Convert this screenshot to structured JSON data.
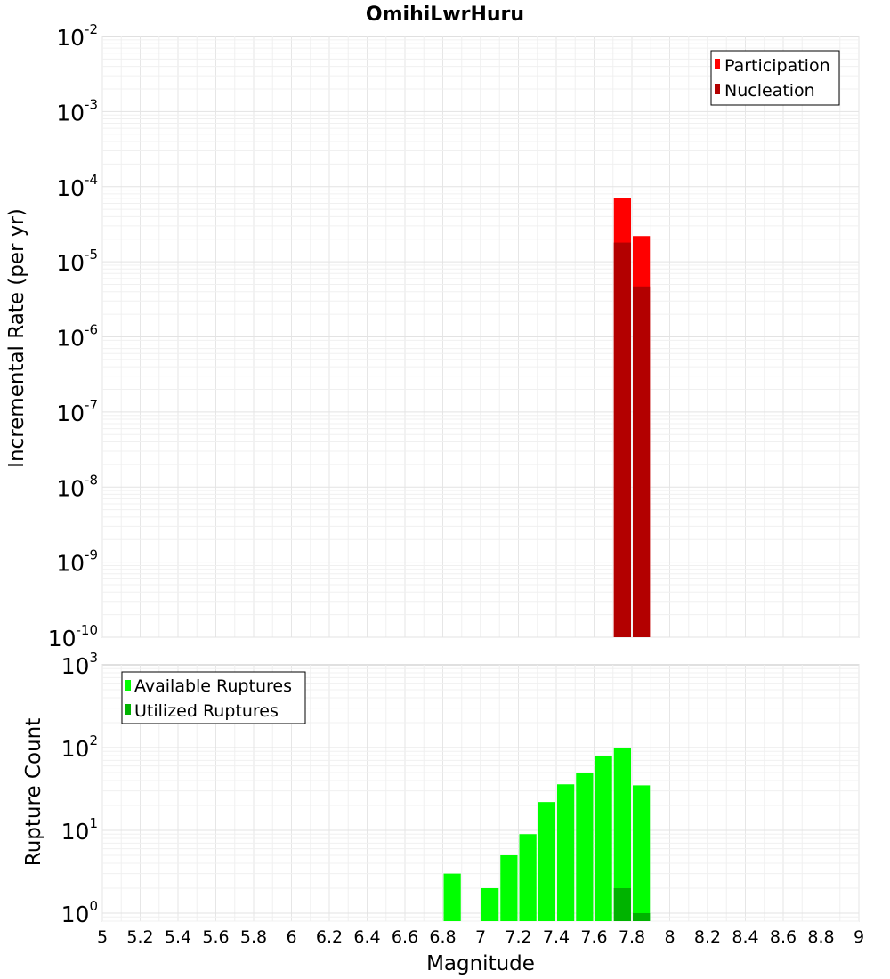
{
  "chart_data": [
    {
      "type": "bar",
      "title": "OmihiLwrHuru",
      "xlabel": "",
      "ylabel": "Incremental Rate (per yr)",
      "yscale": "log",
      "xlim": [
        5,
        9
      ],
      "ylim": [
        1e-10,
        0.01
      ],
      "y_tick_exponents": [
        "-2",
        "-3",
        "-4",
        "-5",
        "-6",
        "-7",
        "-8",
        "-9",
        "-10"
      ],
      "y_tick_base": "10",
      "grid": true,
      "legend_position": "top-right",
      "bar_width": 0.1,
      "series": [
        {
          "name": "Participation",
          "color": "#ff0000",
          "x": [
            7.75,
            7.85
          ],
          "values": [
            7e-05,
            2.2e-05
          ]
        },
        {
          "name": "Nucleation",
          "color": "#b30000",
          "x": [
            7.75,
            7.85
          ],
          "values": [
            1.8e-05,
            4.7e-06
          ]
        }
      ]
    },
    {
      "type": "bar",
      "title": "",
      "xlabel": "Magnitude",
      "ylabel": "Rupture Count",
      "yscale": "log",
      "xlim": [
        5,
        9
      ],
      "ylim": [
        0.8,
        1000
      ],
      "x_ticks": [
        "5",
        "5.2",
        "5.4",
        "5.6",
        "5.8",
        "6",
        "6.2",
        "6.4",
        "6.6",
        "6.8",
        "7",
        "7.2",
        "7.4",
        "7.6",
        "7.8",
        "8",
        "8.2",
        "8.4",
        "8.6",
        "8.8",
        "9"
      ],
      "y_tick_exponents": [
        "3",
        "2",
        "1",
        "0"
      ],
      "y_tick_base": "10",
      "grid": true,
      "legend_position": "top-left",
      "bar_width": 0.1,
      "series": [
        {
          "name": "Available Ruptures",
          "color": "#00ff00",
          "x": [
            6.85,
            7.05,
            7.15,
            7.25,
            7.35,
            7.45,
            7.55,
            7.65,
            7.75,
            7.85
          ],
          "values": [
            3,
            2,
            5,
            9,
            22,
            36,
            49,
            80,
            100,
            35
          ]
        },
        {
          "name": "Utilized Ruptures",
          "color": "#00b300",
          "x": [
            7.75,
            7.85
          ],
          "values": [
            2,
            1
          ]
        }
      ]
    }
  ]
}
